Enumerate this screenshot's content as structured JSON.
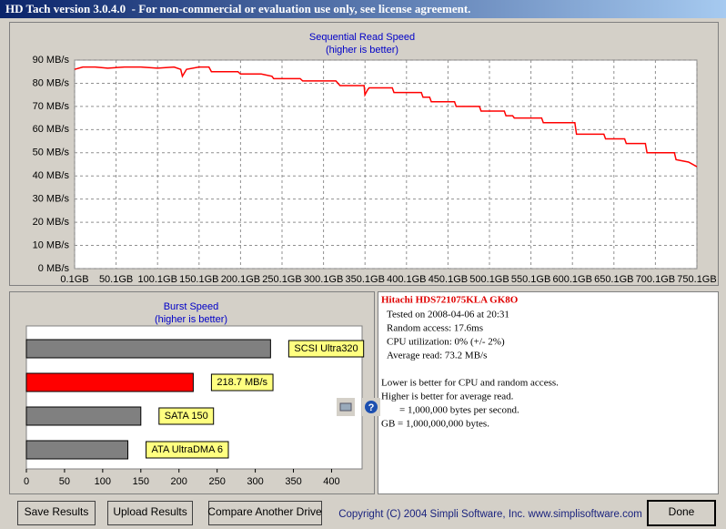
{
  "window": {
    "title": "HD Tach version 3.0.4.0  - For non-commercial or evaluation use only, see license agreement."
  },
  "chart_data": [
    {
      "type": "line",
      "title": "Sequential Read Speed",
      "subtitle": "(higher is better)",
      "color": "#ff0000",
      "grid": true,
      "x": [
        0.1,
        10,
        25,
        40,
        60,
        80,
        100,
        120,
        128,
        130,
        135,
        150,
        162,
        165,
        190,
        197,
        200,
        225,
        238,
        240,
        260,
        272,
        275,
        300,
        315,
        320,
        345,
        349,
        350,
        353,
        355,
        375,
        383,
        385,
        410,
        418,
        420,
        428,
        430,
        455,
        458,
        460,
        485,
        488,
        490,
        515,
        518,
        520,
        528,
        530,
        555,
        563,
        565,
        600,
        603,
        605,
        635,
        638,
        640,
        660,
        663,
        665,
        685,
        688,
        690,
        720,
        723,
        725,
        740,
        750.1
      ],
      "values": [
        86,
        87,
        87,
        86.5,
        87,
        87,
        86.5,
        87,
        86,
        83,
        86,
        87,
        87,
        85,
        85,
        85,
        84,
        84,
        83,
        82,
        82,
        82,
        81,
        81,
        81,
        79,
        79,
        79,
        75,
        77,
        78,
        78,
        78,
        76,
        76,
        76,
        74,
        74,
        72,
        72,
        72,
        70,
        70,
        70,
        68,
        68,
        68,
        66,
        66,
        65,
        65,
        65,
        63,
        63,
        63,
        58,
        58,
        58,
        56,
        56,
        56,
        54,
        54,
        54,
        50,
        50,
        50,
        47,
        46,
        44
      ],
      "xlim": [
        0.1,
        750.1
      ],
      "xticks": [
        {
          "value": 0.1,
          "label": "0.1GB"
        },
        {
          "value": 50.1,
          "label": "50.1GB"
        },
        {
          "value": 100.1,
          "label": "100.1GB"
        },
        {
          "value": 150.1,
          "label": "150.1GB"
        },
        {
          "value": 200.1,
          "label": "200.1GB"
        },
        {
          "value": 250.1,
          "label": "250.1GB"
        },
        {
          "value": 300.1,
          "label": "300.1GB"
        },
        {
          "value": 350.1,
          "label": "350.1GB"
        },
        {
          "value": 400.1,
          "label": "400.1GB"
        },
        {
          "value": 450.1,
          "label": "450.1GB"
        },
        {
          "value": 500.1,
          "label": "500.1GB"
        },
        {
          "value": 550.1,
          "label": "550.1GB"
        },
        {
          "value": 600.1,
          "label": "600.1GB"
        },
        {
          "value": 650.1,
          "label": "650.1GB"
        },
        {
          "value": 700.1,
          "label": "700.1GB"
        },
        {
          "value": 750.1,
          "label": "750.1GB"
        }
      ],
      "ylim": [
        0,
        90
      ],
      "yticks": [
        {
          "value": 0,
          "label": "0 MB/s"
        },
        {
          "value": 10,
          "label": "10 MB/s"
        },
        {
          "value": 20,
          "label": "20 MB/s"
        },
        {
          "value": 30,
          "label": "30 MB/s"
        },
        {
          "value": 40,
          "label": "40 MB/s"
        },
        {
          "value": 50,
          "label": "50 MB/s"
        },
        {
          "value": 60,
          "label": "60 MB/s"
        },
        {
          "value": 70,
          "label": "70 MB/s"
        },
        {
          "value": 80,
          "label": "80 MB/s"
        },
        {
          "value": 90,
          "label": "90 MB/s"
        }
      ]
    },
    {
      "type": "bar",
      "horizontal": true,
      "title": "Burst Speed",
      "subtitle": "(higher is better)",
      "categories": [
        "SCSI Ultra320",
        null,
        "SATA 150",
        "ATA UltraDMA 6"
      ],
      "values": [
        320,
        218.7,
        150,
        133
      ],
      "value_labels": [
        null,
        "218.7 MB/s",
        null,
        null
      ],
      "colors": [
        "#808080",
        "#ff0000",
        "#808080",
        "#808080"
      ],
      "xlim": [
        0,
        440
      ],
      "xticks": [
        0,
        50,
        100,
        150,
        200,
        250,
        300,
        350,
        400
      ]
    }
  ],
  "info": {
    "drive": "Hitachi HDS721075KLA GK8O",
    "details": [
      "Tested on 2008-04-06 at 20:31",
      "Random access: 17.6ms",
      "CPU utilization: 0% (+/- 2%)",
      "Average read: 73.2 MB/s"
    ],
    "notes": [
      "Lower is better for CPU and random access.",
      "Higher is better for average read.",
      "= 1,000,000 bytes per second.",
      "GB = 1,000,000,000 bytes."
    ]
  },
  "buttons": [
    "Save Results",
    "Upload Results",
    "Compare Another Drive",
    "Done"
  ],
  "copyright": "Copyright (C) 2004 Simpli Software, Inc. www.simplisoftware.com"
}
